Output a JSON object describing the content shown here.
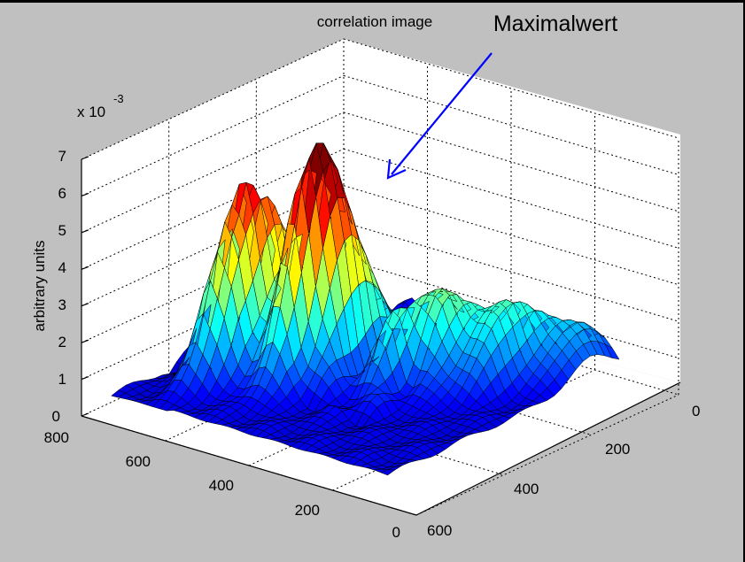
{
  "chart_data": {
    "type": "surface",
    "title": "correlation image",
    "zlabel": "arbitrary units",
    "zexp": "x 10",
    "zexp_power": "-3",
    "zticks": [
      "0",
      "1",
      "2",
      "3",
      "4",
      "5",
      "6",
      "7"
    ],
    "zlim": [
      0,
      7
    ],
    "xticks": [
      "0",
      "200",
      "400",
      "600",
      "800"
    ],
    "xlim": [
      0,
      800
    ],
    "yticks": [
      "0",
      "200",
      "400",
      "600"
    ],
    "ylim": [
      0,
      600
    ],
    "peak_value": 6.2,
    "grid": true,
    "colormap": "jet",
    "annotation": {
      "text": "Maximalwert",
      "color": "#0000ff"
    }
  }
}
